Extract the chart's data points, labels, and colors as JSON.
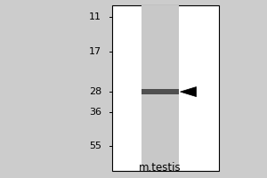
{
  "title": "m.testis",
  "mw_markers": [
    55,
    36,
    28,
    17,
    11
  ],
  "band_mw": 28,
  "background_color": "#cccccc",
  "gel_facecolor": "#ffffff",
  "lane_color": "#d4d4d4",
  "band_color": "#505050",
  "border_color": "#000000",
  "title_fontsize": 8.5,
  "marker_fontsize": 8,
  "fig_width": 3.0,
  "fig_height": 2.0,
  "dpi": 100,
  "log_min": 0.98,
  "log_max": 1.875
}
